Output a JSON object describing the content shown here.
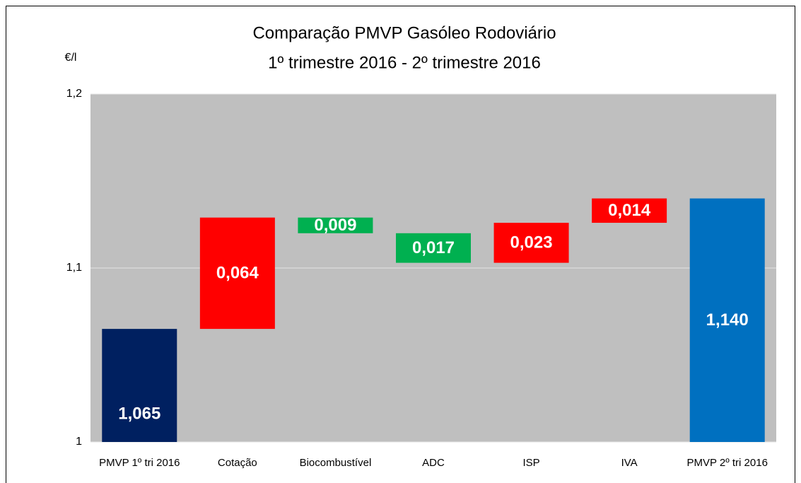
{
  "chart_data": {
    "type": "waterfall",
    "title": "Comparação PMVP Gasóleo Rodoviário",
    "subtitle": "1º trimestre 2016 - 2º trimestre 2016",
    "y_label": "€/l",
    "categories": [
      "PMVP 1º tri 2016",
      "Cotação",
      "Biocombustível",
      "ADC",
      "ISP",
      "IVA",
      "PMVP 2º tri 2016"
    ],
    "values": [
      1.065,
      0.064,
      -0.009,
      -0.017,
      0.023,
      0.014,
      1.14
    ],
    "value_labels": [
      "1,065",
      "0,064",
      "0,009",
      "0,017",
      "0,023",
      "0,014",
      "1,140"
    ],
    "colors": [
      "#002060",
      "#ff0000",
      "#00b050",
      "#00b050",
      "#ff0000",
      "#ff0000",
      "#0070c0"
    ],
    "ylim": [
      1,
      1.2
    ],
    "yticks": [
      1,
      {
        "value": 1.1,
        "label": "1,1"
      },
      {
        "value": 1.2,
        "label": "1,2"
      }
    ],
    "grid": true,
    "plot_background": "#bfbfbf"
  }
}
